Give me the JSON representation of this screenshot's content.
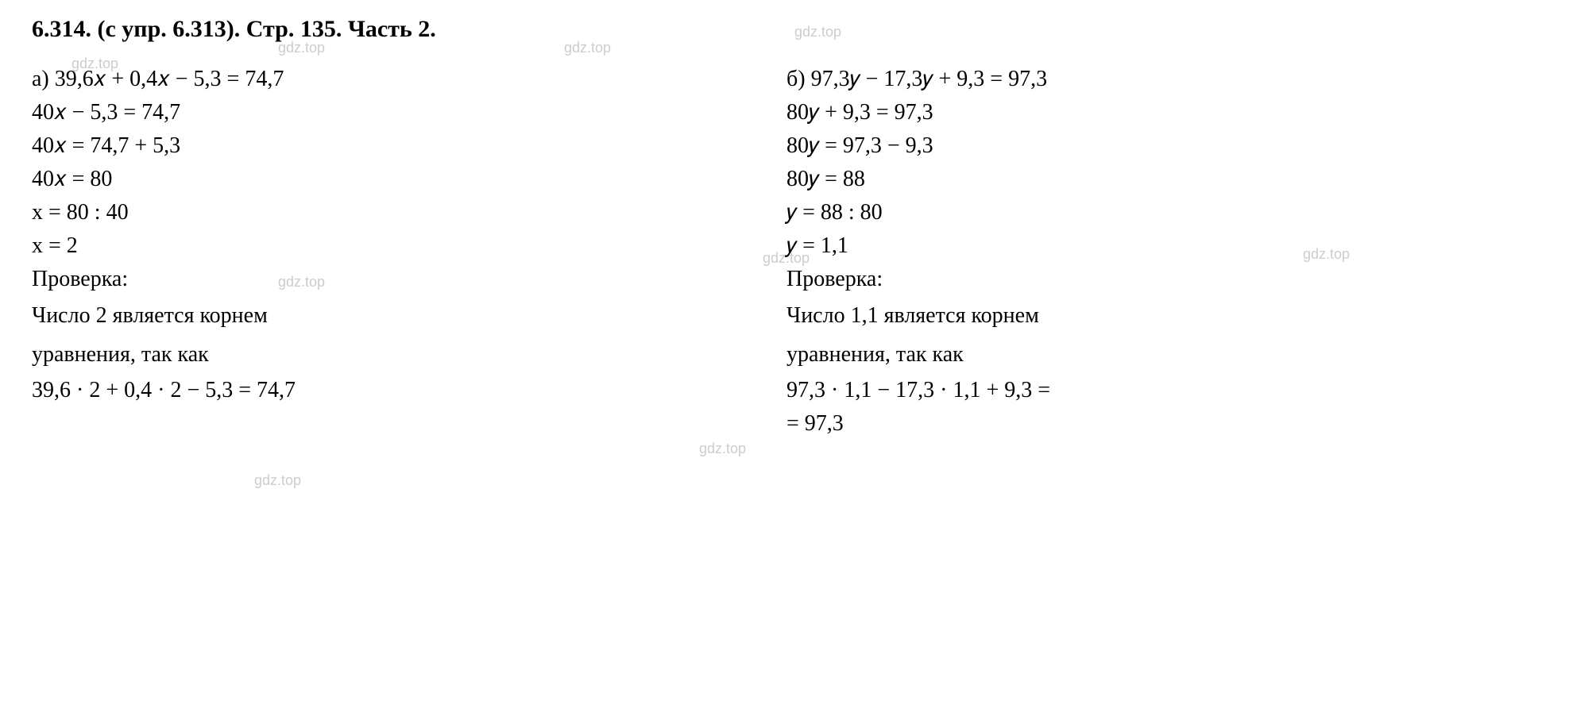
{
  "header": {
    "text": "6.314.  (с упр. 6.313). Стр. 135. Часть 2.",
    "color": "#000000",
    "fontsize_pt": 22,
    "weight": "bold"
  },
  "watermarks": {
    "text": "gdz.top",
    "color": "#cccccc",
    "fontsize_pt": 13
  },
  "columns": {
    "a": {
      "label": "а)",
      "lines": [
        "а) 39,6𝑥  +  0,4𝑥  −  5,3  =  74,7",
        "40𝑥 − 5,3  =  74,7",
        "40𝑥  =  74,7 + 5,3",
        "40𝑥  =  80",
        "x  =  80 :  40",
        "x  =  2",
        "Проверка:",
        "Число 2 является корнем",
        "уравнения, так как",
        "39,6 · 2  +  0,4 · 2  −  5,3  =  74,7"
      ]
    },
    "b": {
      "label": "б)",
      "lines": [
        "б) 97,3𝑦  −  17,3𝑦  +  9,3  =  97,3",
        "80𝑦   +  9,3  =  97,3",
        "80𝑦   =   97,3 −  9,3",
        "80𝑦  =  88",
        "𝑦  =  88  :   80",
        "𝑦   =  1,1",
        "Проверка:",
        "Число 1,1 является корнем",
        "уравнения, так как",
        "97,3 · 1,1  −  17,3 · 1,1  +  9,3 =",
        "=  97,3"
      ]
    }
  },
  "style": {
    "background_color": "#ffffff",
    "text_color": "#000000",
    "body_fontsize_pt": 21,
    "font_family": "Times New Roman"
  }
}
